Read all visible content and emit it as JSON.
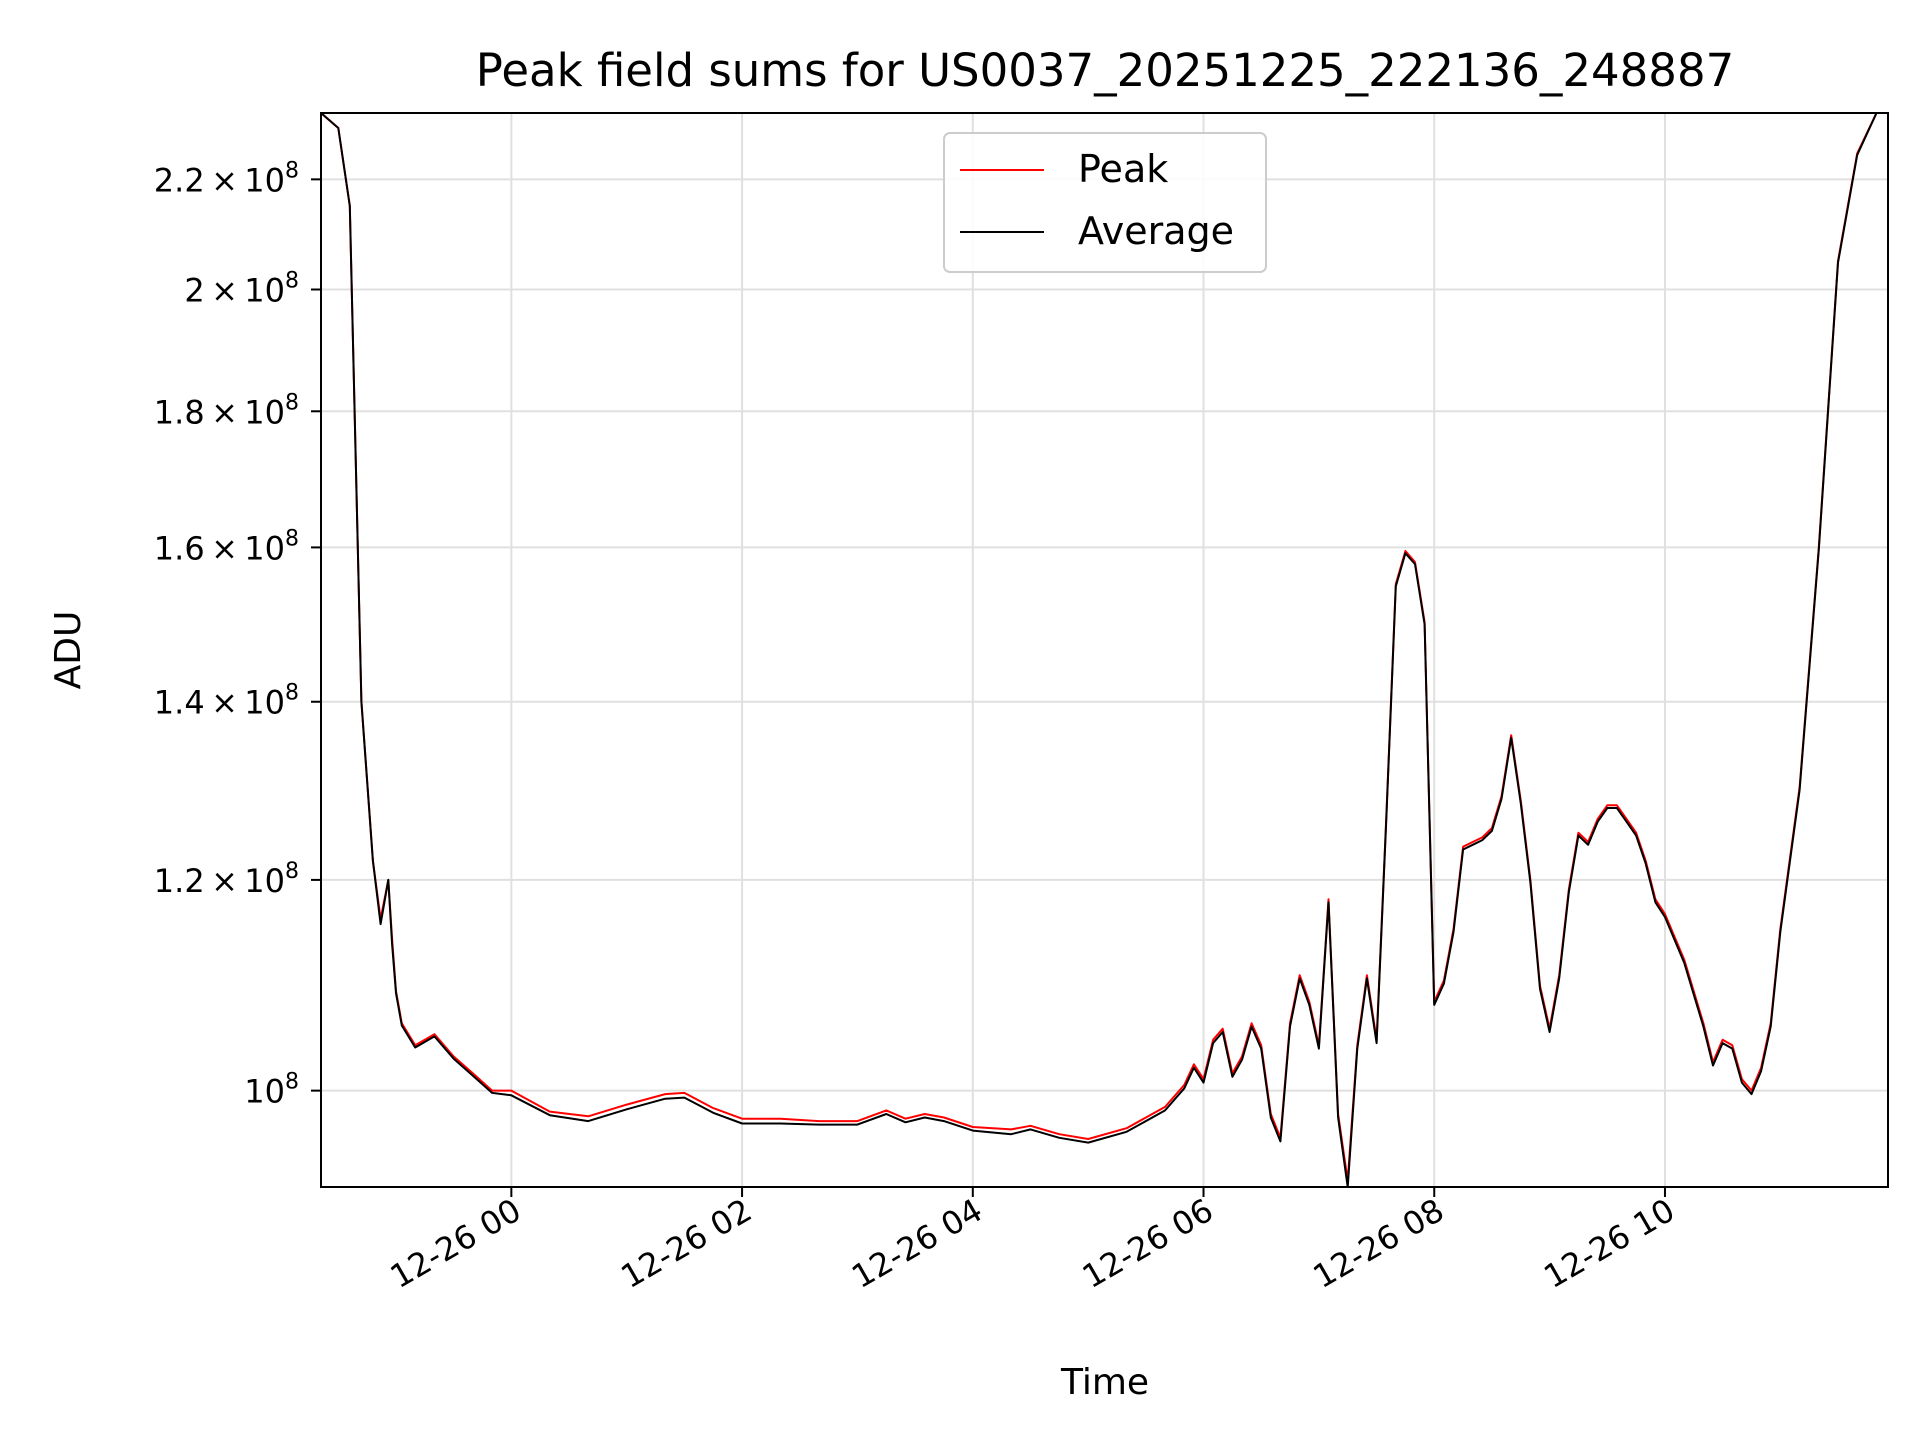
{
  "chart_data": {
    "type": "line",
    "title": "Peak field sums for US0037_20251225_222136_248887",
    "xlabel": "Time",
    "ylabel": "ADU",
    "y_scale": "log",
    "x_start": "12-25 22:21",
    "x_end": "12-26 11:56",
    "ylim": [
      92000000,
      233000000
    ],
    "grid": true,
    "legend_position": "top-center",
    "x_ticks": [
      "12-26 00",
      "12-26 02",
      "12-26 04",
      "12-26 06",
      "12-26 08",
      "12-26 10"
    ],
    "y_ticks": [
      {
        "value": 100000000,
        "mant": "",
        "exp": "8",
        "label": "10^8"
      },
      {
        "value": 120000000,
        "mant": "1.2",
        "exp": "8",
        "label": "1.2 × 10^8"
      },
      {
        "value": 140000000,
        "mant": "1.4",
        "exp": "8",
        "label": "1.4 × 10^8"
      },
      {
        "value": 160000000,
        "mant": "1.6",
        "exp": "8",
        "label": "1.6 × 10^8"
      },
      {
        "value": 180000000,
        "mant": "1.8",
        "exp": "8",
        "label": "1.8 × 10^8"
      },
      {
        "value": 200000000,
        "mant": "2",
        "exp": "8",
        "label": "2 × 10^8"
      },
      {
        "value": 220000000,
        "mant": "2.2",
        "exp": "8",
        "label": "2.2 × 10^8"
      }
    ],
    "x": [
      "12-25 22:21",
      "12-25 22:30",
      "12-25 22:36",
      "12-25 22:42",
      "12-25 22:48",
      "12-25 22:52",
      "12-25 22:56",
      "12-25 22:58",
      "12-25 23:00",
      "12-25 23:03",
      "12-25 23:10",
      "12-25 23:20",
      "12-25 23:30",
      "12-25 23:40",
      "12-25 23:50",
      "12-26 00:00",
      "12-26 00:20",
      "12-26 00:40",
      "12-26 01:00",
      "12-26 01:20",
      "12-26 01:30",
      "12-26 01:45",
      "12-26 02:00",
      "12-26 02:20",
      "12-26 02:40",
      "12-26 03:00",
      "12-26 03:15",
      "12-26 03:25",
      "12-26 03:35",
      "12-26 03:45",
      "12-26 04:00",
      "12-26 04:20",
      "12-26 04:30",
      "12-26 04:45",
      "12-26 05:00",
      "12-26 05:20",
      "12-26 05:40",
      "12-26 05:50",
      "12-26 05:55",
      "12-26 06:00",
      "12-26 06:05",
      "12-26 06:10",
      "12-26 06:15",
      "12-26 06:20",
      "12-26 06:25",
      "12-26 06:30",
      "12-26 06:35",
      "12-26 06:40",
      "12-26 06:45",
      "12-26 06:50",
      "12-26 06:55",
      "12-26 07:00",
      "12-26 07:05",
      "12-26 07:10",
      "12-26 07:15",
      "12-26 07:20",
      "12-26 07:25",
      "12-26 07:30",
      "12-26 07:35",
      "12-26 07:40",
      "12-26 07:45",
      "12-26 07:50",
      "12-26 07:55",
      "12-26 08:00",
      "12-26 08:05",
      "12-26 08:10",
      "12-26 08:15",
      "12-26 08:20",
      "12-26 08:25",
      "12-26 08:30",
      "12-26 08:35",
      "12-26 08:40",
      "12-26 08:45",
      "12-26 08:50",
      "12-26 08:55",
      "12-26 09:00",
      "12-26 09:05",
      "12-26 09:10",
      "12-26 09:15",
      "12-26 09:20",
      "12-26 09:25",
      "12-26 09:30",
      "12-26 09:35",
      "12-26 09:40",
      "12-26 09:45",
      "12-26 09:50",
      "12-26 09:55",
      "12-26 10:00",
      "12-26 10:10",
      "12-26 10:20",
      "12-26 10:25",
      "12-26 10:30",
      "12-26 10:35",
      "12-26 10:40",
      "12-26 10:45",
      "12-26 10:50",
      "12-26 10:55",
      "12-26 11:00",
      "12-26 11:10",
      "12-26 11:20",
      "12-26 11:30",
      "12-26 11:40",
      "12-26 11:50",
      "12-26 11:56"
    ],
    "series": [
      {
        "name": "Peak",
        "color": "#ff0000",
        "values": [
          235000000,
          230000000,
          215000000,
          140000000,
          122000000,
          116000000,
          120000000,
          114000000,
          109000000,
          106000000,
          104000000,
          105000000,
          103000000,
          101500000,
          100000000,
          100000000,
          98200000,
          97800000,
          98800000,
          99700000,
          99800000,
          98500000,
          97600000,
          97600000,
          97400000,
          97400000,
          98300000,
          97600000,
          98000000,
          97700000,
          96900000,
          96700000,
          97000000,
          96300000,
          95900000,
          96800000,
          98600000,
          100500000,
          102300000,
          101000000,
          104500000,
          105500000,
          101500000,
          103000000,
          106000000,
          104000000,
          98000000,
          96000000,
          106000000,
          110500000,
          108000000,
          104000000,
          118000000,
          98000000,
          92500000,
          104000000,
          110500000,
          104500000,
          126500000,
          155000000,
          159500000,
          158000000,
          150000000,
          108000000,
          110000000,
          115000000,
          123500000,
          124000000,
          124500000,
          125500000,
          129000000,
          136000000,
          128500000,
          120000000,
          109500000,
          105500000,
          110500000,
          119000000,
          125000000,
          124000000,
          126500000,
          128000000,
          128000000,
          126500000,
          125000000,
          122000000,
          118000000,
          116500000,
          112000000,
          106000000,
          102500000,
          104500000,
          104000000,
          101000000,
          100000000,
          102000000,
          106000000,
          115000000,
          130000000,
          160000000,
          205000000,
          225000000,
          233000000,
          233000000
        ]
      },
      {
        "name": "Average",
        "color": "#000000",
        "values": [
          235000000,
          230000000,
          215000000,
          140000000,
          122000000,
          115500000,
          120000000,
          113500000,
          108800000,
          105800000,
          103800000,
          104800000,
          102800000,
          101300000,
          99800000,
          99600000,
          97900000,
          97400000,
          98400000,
          99300000,
          99400000,
          98100000,
          97200000,
          97200000,
          97100000,
          97100000,
          98000000,
          97300000,
          97700000,
          97400000,
          96600000,
          96300000,
          96700000,
          96000000,
          95600000,
          96500000,
          98300000,
          100200000,
          102000000,
          100700000,
          104200000,
          105200000,
          101200000,
          102700000,
          105700000,
          103700000,
          97700000,
          95700000,
          105700000,
          110200000,
          107700000,
          103700000,
          117700000,
          97700000,
          92000000,
          103700000,
          110200000,
          104200000,
          126200000,
          154700000,
          159200000,
          157700000,
          149700000,
          107700000,
          109700000,
          114700000,
          123200000,
          123700000,
          124200000,
          125200000,
          128700000,
          135700000,
          128200000,
          119700000,
          109200000,
          105200000,
          110200000,
          118700000,
          124700000,
          123700000,
          126200000,
          127700000,
          127700000,
          126200000,
          124700000,
          121700000,
          117700000,
          116200000,
          111700000,
          105700000,
          102200000,
          104200000,
          103700000,
          100700000,
          99700000,
          101700000,
          105700000,
          114700000,
          129700000,
          159700000,
          204700000,
          224700000,
          233000000,
          233000000
        ]
      }
    ]
  }
}
